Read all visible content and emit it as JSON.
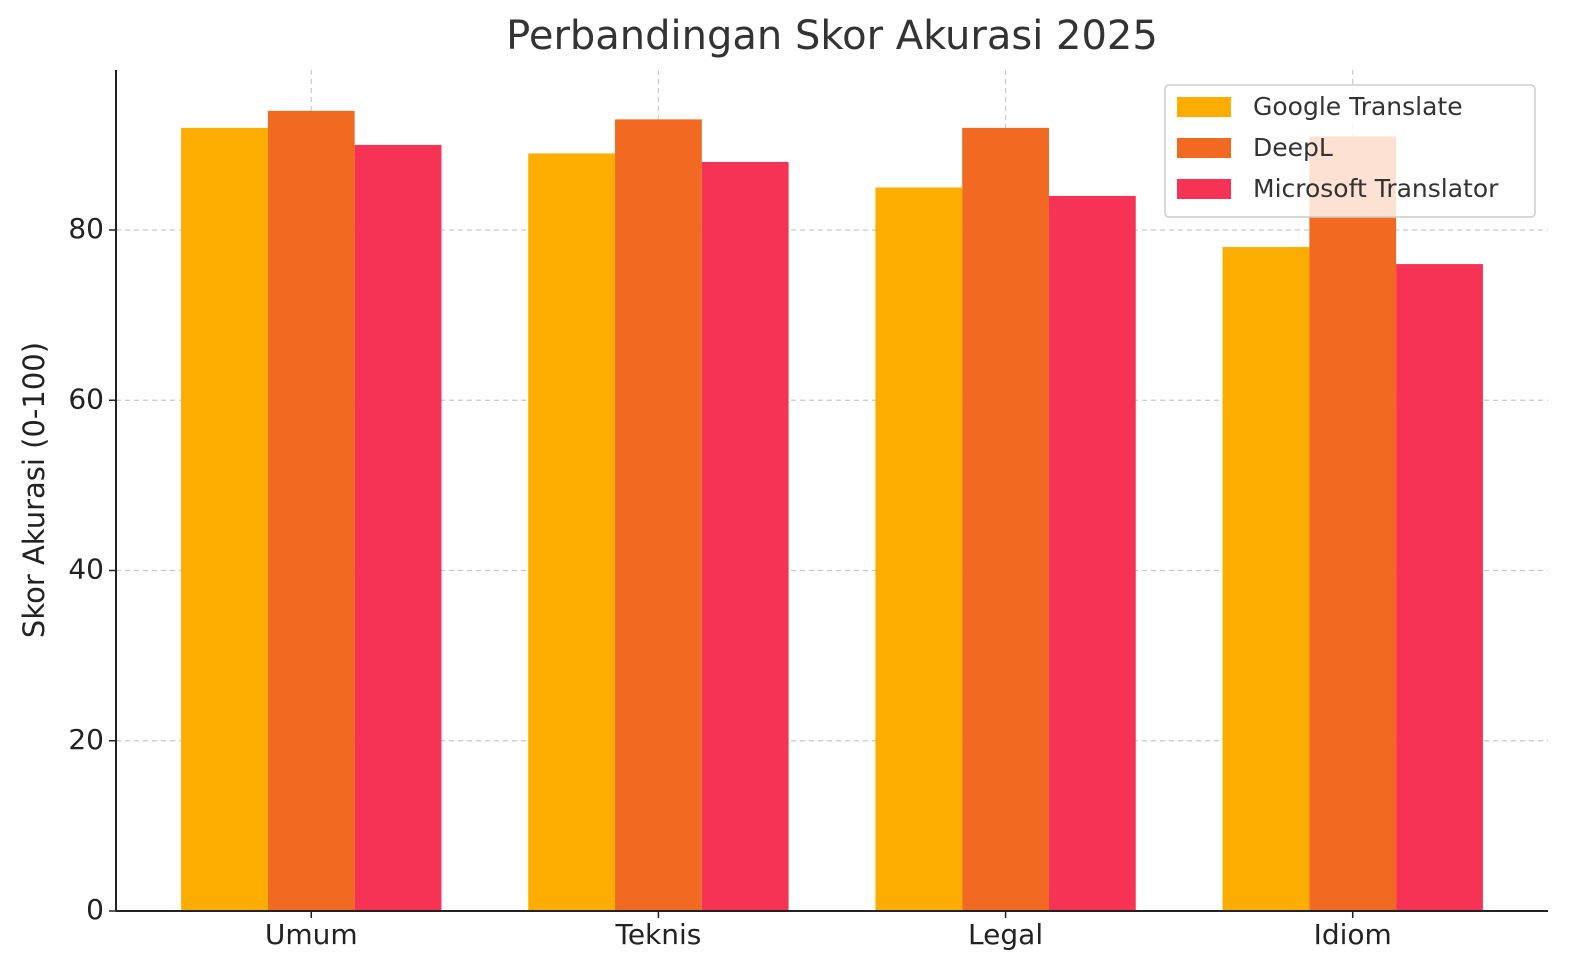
{
  "chart_data": {
    "type": "grouped-bar",
    "title": "Perbandingan Skor Akurasi 2025",
    "y_label": "Skor Akurasi (0-100)",
    "categories": [
      "Umum",
      "Teknis",
      "Legal",
      "Idiom"
    ],
    "series": [
      {
        "name": "Google Translate",
        "color": "#FDAD00",
        "values": [
          92,
          89,
          85,
          78
        ]
      },
      {
        "name": "DeepL",
        "color": "#F26A22",
        "values": [
          94,
          93,
          92,
          91
        ]
      },
      {
        "name": "Microsoft Translator",
        "color": "#F63355",
        "values": [
          90,
          88,
          84,
          76
        ]
      }
    ],
    "ylim": [
      0,
      98.8
    ],
    "yticks": [
      0,
      20,
      40,
      60,
      80
    ],
    "grid": true,
    "legend": "upper right"
  }
}
